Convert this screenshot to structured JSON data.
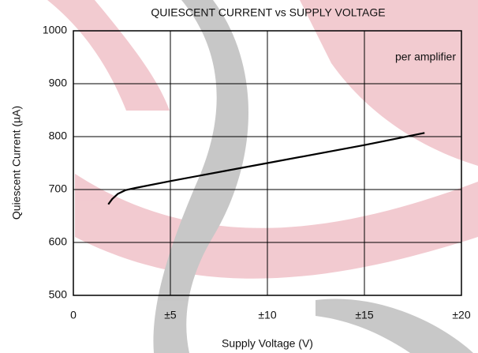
{
  "chart_data": {
    "type": "line",
    "title": "QUIESCENT CURRENT vs SUPPLY VOLTAGE",
    "x_label": "Supply Voltage (V)",
    "y_label": "Quiescent Current (µA)",
    "annotation": "per amplifier",
    "x": [
      1.8,
      2.0,
      2.3,
      2.7,
      3.2,
      5,
      10,
      15,
      18.1
    ],
    "values": [
      672,
      682,
      692,
      699,
      703,
      716,
      750,
      784,
      807
    ],
    "color": "#000000",
    "xlim": [
      0,
      20
    ],
    "xticks": [
      0,
      {
        "value": 5,
        "label": "±5"
      },
      {
        "value": 10,
        "label": "±10"
      },
      {
        "value": 15,
        "label": "±15"
      },
      {
        "value": 20,
        "label": "±20"
      }
    ],
    "ylim": [
      500,
      1000
    ],
    "yticks": [
      500,
      600,
      700,
      800,
      900,
      1000
    ],
    "grid": true
  }
}
